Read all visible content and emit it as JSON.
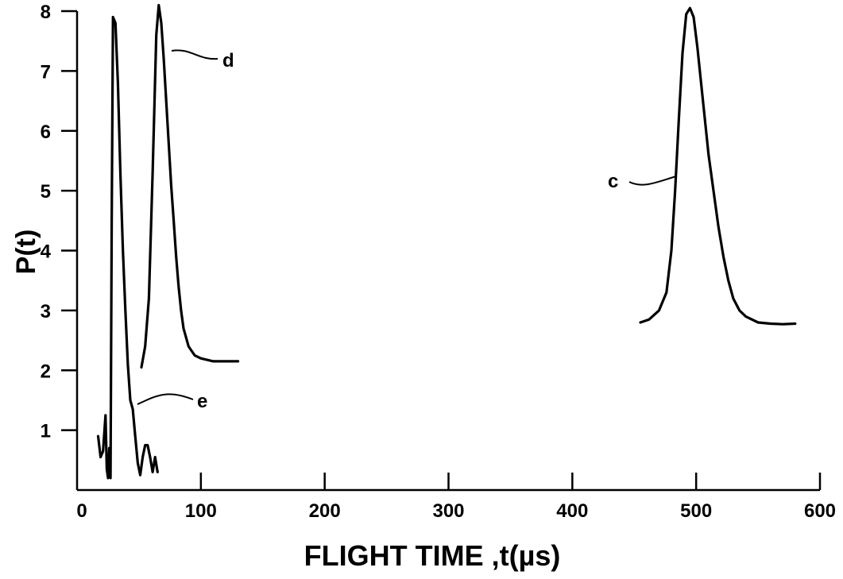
{
  "chart_data": {
    "type": "line",
    "xlabel": "FLIGHT TIME ,t(µs)",
    "ylabel": "P(t)",
    "xlim": [
      0,
      600
    ],
    "ylim": [
      0,
      8
    ],
    "x_ticks": [
      "0",
      "100",
      "200",
      "300",
      "400",
      "500",
      "600"
    ],
    "y_ticks": [
      "1",
      "2",
      "3",
      "4",
      "5",
      "6",
      "7",
      "8"
    ],
    "grid": false,
    "series": [
      {
        "name": "e",
        "x": [
          17,
          19,
          21,
          23,
          24,
          25,
          26,
          27,
          28,
          29,
          31,
          33,
          35,
          37,
          39,
          41,
          43,
          45,
          47,
          49,
          51,
          53,
          55,
          57,
          59,
          61,
          63,
          65
        ],
        "y": [
          0.9,
          0.55,
          0.65,
          1.25,
          0.35,
          0.2,
          0.7,
          0.2,
          4.5,
          7.9,
          7.8,
          6.8,
          5.3,
          4.0,
          3.0,
          2.1,
          1.5,
          1.35,
          0.9,
          0.45,
          0.25,
          0.55,
          0.75,
          0.75,
          0.55,
          0.3,
          0.55,
          0.3
        ]
      },
      {
        "name": "d",
        "x": [
          52,
          55,
          58,
          61,
          64,
          66,
          68,
          70,
          72,
          74,
          76,
          78,
          80,
          82,
          84,
          86,
          90,
          95,
          100,
          110,
          120,
          130
        ],
        "y": [
          2.05,
          2.4,
          3.2,
          5.3,
          7.6,
          8.1,
          7.8,
          7.2,
          6.5,
          5.8,
          5.1,
          4.5,
          3.9,
          3.4,
          3.0,
          2.7,
          2.4,
          2.25,
          2.2,
          2.15,
          2.15,
          2.15
        ]
      },
      {
        "name": "c",
        "x": [
          455,
          462,
          470,
          476,
          480,
          483,
          486,
          489,
          492,
          495,
          498,
          501,
          504,
          507,
          510,
          514,
          518,
          522,
          526,
          530,
          535,
          540,
          550,
          560,
          570,
          580
        ],
        "y": [
          2.8,
          2.85,
          3.0,
          3.3,
          4.0,
          5.0,
          6.2,
          7.3,
          7.95,
          8.05,
          7.9,
          7.4,
          6.8,
          6.2,
          5.6,
          5.0,
          4.4,
          3.9,
          3.5,
          3.2,
          3.0,
          2.9,
          2.8,
          2.78,
          2.77,
          2.78
        ]
      }
    ]
  }
}
